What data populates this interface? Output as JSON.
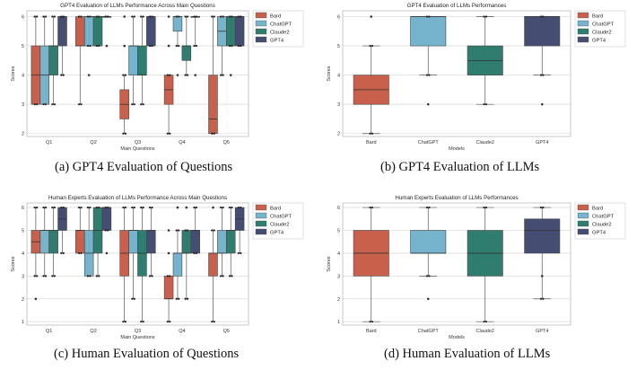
{
  "colors": {
    "Bard": "#c8604b",
    "ChatGPT": "#76b4cd",
    "Claude2": "#2f7d6e",
    "GPT4": "#454d72"
  },
  "chart_data": [
    {
      "id": "a",
      "type": "boxplot",
      "title": "GPT4 Evaluation of LLMs Performance Across Main Questions",
      "xlabel": "Main Questions",
      "ylabel": "Scores",
      "ylim": [
        1.9,
        6.2
      ],
      "yticks": [
        2,
        3,
        4,
        5,
        6
      ],
      "legend": "top-right",
      "grid": "y",
      "legend_entries": [
        "Bard",
        "ChatGPT",
        "Claude2",
        "GPT4"
      ],
      "categories": [
        "Q1",
        "Q2",
        "Q3",
        "Q4",
        "Q5"
      ],
      "series": [
        {
          "name": "Bard",
          "boxes": [
            {
              "min": 3,
              "q1": 3,
              "median": 4,
              "q3": 5,
              "max": 6,
              "outliers": []
            },
            {
              "min": 3,
              "q1": 5,
              "median": 5,
              "q3": 6,
              "max": 6,
              "outliers": []
            },
            {
              "min": 2,
              "q1": 2.5,
              "median": 3,
              "q3": 3.5,
              "max": 4,
              "outliers": [
                5,
                6
              ]
            },
            {
              "min": 2,
              "q1": 3,
              "median": 3.5,
              "q3": 4,
              "max": 4,
              "outliers": [
                5,
                6
              ]
            },
            {
              "min": 2,
              "q1": 2,
              "median": 2.5,
              "q3": 4,
              "max": 6,
              "outliers": []
            }
          ]
        },
        {
          "name": "ChatGPT",
          "boxes": [
            {
              "min": 3,
              "q1": 3,
              "median": 4,
              "q3": 5,
              "max": 6,
              "outliers": []
            },
            {
              "min": 5,
              "q1": 5,
              "median": 6,
              "q3": 6,
              "max": 6,
              "outliers": [
                4
              ]
            },
            {
              "min": 3,
              "q1": 4,
              "median": 5,
              "q3": 5,
              "max": 6,
              "outliers": []
            },
            {
              "min": 5,
              "q1": 5.5,
              "median": 6,
              "q3": 6,
              "max": 6,
              "outliers": [
                4
              ]
            },
            {
              "min": 4,
              "q1": 5,
              "median": 5.5,
              "q3": 6,
              "max": 6,
              "outliers": []
            }
          ]
        },
        {
          "name": "Claude2",
          "boxes": [
            {
              "min": 3,
              "q1": 4,
              "median": 5,
              "q3": 5,
              "max": 6,
              "outliers": []
            },
            {
              "min": 5,
              "q1": 5,
              "median": 6,
              "q3": 6,
              "max": 6,
              "outliers": []
            },
            {
              "min": 3,
              "q1": 4,
              "median": 4,
              "q3": 5,
              "max": 6,
              "outliers": []
            },
            {
              "min": 4,
              "q1": 4.5,
              "median": 5,
              "q3": 5,
              "max": 6,
              "outliers": []
            },
            {
              "min": 5,
              "q1": 5,
              "median": 6,
              "q3": 6,
              "max": 6,
              "outliers": [
                4
              ]
            }
          ]
        },
        {
          "name": "GPT4",
          "boxes": [
            {
              "min": 4,
              "q1": 5,
              "median": 6,
              "q3": 6,
              "max": 6,
              "outliers": []
            },
            {
              "min": 6,
              "q1": 6,
              "median": 6,
              "q3": 6,
              "max": 6,
              "outliers": [
                5
              ]
            },
            {
              "min": 5,
              "q1": 5,
              "median": 6,
              "q3": 6,
              "max": 6,
              "outliers": []
            },
            {
              "min": 5,
              "q1": 6,
              "median": 6,
              "q3": 6,
              "max": 6,
              "outliers": [
                4
              ]
            },
            {
              "min": 5,
              "q1": 5,
              "median": 6,
              "q3": 6,
              "max": 6,
              "outliers": []
            }
          ]
        }
      ]
    },
    {
      "id": "b",
      "type": "boxplot",
      "title": "GPT4 Evaluation of LLMs Performances",
      "xlabel": "Models",
      "ylabel": "Scores",
      "ylim": [
        1.9,
        6.2
      ],
      "yticks": [
        2,
        3,
        4,
        5,
        6
      ],
      "legend": "top-right",
      "grid": "y",
      "legend_entries": [
        "Bard",
        "ChatGPT",
        "Claude2",
        "GPT4"
      ],
      "categories": [
        "Bard",
        "ChatGPT",
        "Claude2",
        "GPT4"
      ],
      "series": [
        {
          "name": "Bard",
          "boxes": [
            {
              "min": 2,
              "q1": 3,
              "median": 3.5,
              "q3": 4,
              "max": 5,
              "outliers": [
                6
              ]
            }
          ]
        },
        {
          "name": "ChatGPT",
          "boxes": [
            {
              "min": 4,
              "q1": 5,
              "median": 6,
              "q3": 6,
              "max": 6,
              "outliers": [
                3
              ]
            }
          ]
        },
        {
          "name": "Claude2",
          "boxes": [
            {
              "min": 3,
              "q1": 4,
              "median": 4.5,
              "q3": 5,
              "max": 6,
              "outliers": []
            }
          ]
        },
        {
          "name": "GPT4",
          "boxes": [
            {
              "min": 4,
              "q1": 5,
              "median": 6,
              "q3": 6,
              "max": 6,
              "outliers": [
                3
              ]
            }
          ]
        }
      ]
    },
    {
      "id": "c",
      "type": "boxplot",
      "title": "Human Experts Evaluation of LLMs Performance Across Main Questions",
      "xlabel": "Main Questions",
      "ylabel": "Scores",
      "ylim": [
        0.85,
        6.2
      ],
      "yticks": [
        1,
        2,
        3,
        4,
        5,
        6
      ],
      "legend": "top-right",
      "grid": "y",
      "legend_entries": [
        "Bard",
        "ChatGPT",
        "Claude2",
        "GPT4"
      ],
      "categories": [
        "Q1",
        "Q2",
        "Q3",
        "Q4",
        "Q5"
      ],
      "series": [
        {
          "name": "Bard",
          "boxes": [
            {
              "min": 3,
              "q1": 4,
              "median": 4.5,
              "q3": 5,
              "max": 6,
              "outliers": [
                2
              ]
            },
            {
              "min": 4,
              "q1": 4,
              "median": 5,
              "q3": 5,
              "max": 6,
              "outliers": []
            },
            {
              "min": 1,
              "q1": 3,
              "median": 4,
              "q3": 5,
              "max": 6,
              "outliers": []
            },
            {
              "min": 1,
              "q1": 2,
              "median": 2,
              "q3": 3,
              "max": 3,
              "outliers": [
                4,
                5
              ]
            },
            {
              "min": 1,
              "q1": 3,
              "median": 4,
              "q3": 4,
              "max": 5,
              "outliers": [
                6
              ]
            }
          ]
        },
        {
          "name": "ChatGPT",
          "boxes": [
            {
              "min": 3,
              "q1": 4,
              "median": 5,
              "q3": 5,
              "max": 6,
              "outliers": []
            },
            {
              "min": 3,
              "q1": 3,
              "median": 4,
              "q3": 5,
              "max": 6,
              "outliers": []
            },
            {
              "min": 2,
              "q1": 4,
              "median": 5,
              "q3": 5,
              "max": 6,
              "outliers": []
            },
            {
              "min": 2,
              "q1": 3,
              "median": 4,
              "q3": 4,
              "max": 5,
              "outliers": [
                6
              ]
            },
            {
              "min": 3,
              "q1": 4,
              "median": 4,
              "q3": 5,
              "max": 6,
              "outliers": []
            }
          ]
        },
        {
          "name": "Claude2",
          "boxes": [
            {
              "min": 3,
              "q1": 4,
              "median": 5,
              "q3": 5,
              "max": 6,
              "outliers": []
            },
            {
              "min": 3,
              "q1": 4,
              "median": 5,
              "q3": 6,
              "max": 6,
              "outliers": []
            },
            {
              "min": 1,
              "q1": 3,
              "median": 4,
              "q3": 5,
              "max": 6,
              "outliers": []
            },
            {
              "min": 2,
              "q1": 4,
              "median": 4,
              "q3": 5,
              "max": 5,
              "outliers": [
                6
              ]
            },
            {
              "min": 3,
              "q1": 4,
              "median": 5,
              "q3": 5,
              "max": 6,
              "outliers": []
            }
          ]
        },
        {
          "name": "GPT4",
          "boxes": [
            {
              "min": 4,
              "q1": 5,
              "median": 5.5,
              "q3": 6,
              "max": 6,
              "outliers": []
            },
            {
              "min": 5,
              "q1": 5,
              "median": 6,
              "q3": 6,
              "max": 6,
              "outliers": [
                4
              ]
            },
            {
              "min": 3,
              "q1": 4,
              "median": 5,
              "q3": 5,
              "max": 6,
              "outliers": []
            },
            {
              "min": 4,
              "q1": 4,
              "median": 5,
              "q3": 5,
              "max": 6,
              "outliers": []
            },
            {
              "min": 4,
              "q1": 5,
              "median": 5.5,
              "q3": 6,
              "max": 6,
              "outliers": []
            }
          ]
        }
      ]
    },
    {
      "id": "d",
      "type": "boxplot",
      "title": "Human Experts Evaluation of LLMs Performances",
      "xlabel": "Models",
      "ylabel": "Scores",
      "ylim": [
        0.85,
        6.2
      ],
      "yticks": [
        1,
        2,
        3,
        4,
        5,
        6
      ],
      "legend": "top-right",
      "grid": "y",
      "legend_entries": [
        "Bard",
        "ChatGPT",
        "Claude2",
        "GPT4"
      ],
      "categories": [
        "Bard",
        "ChatGPT",
        "Claude2",
        "GPT4"
      ],
      "series": [
        {
          "name": "Bard",
          "boxes": [
            {
              "min": 1,
              "q1": 3,
              "median": 4,
              "q3": 5,
              "max": 6,
              "outliers": []
            }
          ]
        },
        {
          "name": "ChatGPT",
          "boxes": [
            {
              "min": 3,
              "q1": 4,
              "median": 4,
              "q3": 5,
              "max": 6,
              "outliers": [
                2
              ]
            }
          ]
        },
        {
          "name": "Claude2",
          "boxes": [
            {
              "min": 1,
              "q1": 3,
              "median": 4,
              "q3": 5,
              "max": 6,
              "outliers": []
            }
          ]
        },
        {
          "name": "GPT4",
          "boxes": [
            {
              "min": 2,
              "q1": 4,
              "median": 5,
              "q3": 5.5,
              "max": 6,
              "outliers": [
                3
              ]
            }
          ]
        }
      ]
    }
  ],
  "captions": {
    "a": "(a) GPT4 Evaluation of Questions",
    "b": "(b) GPT4 Evaluation of LLMs",
    "c": "(c) Human Evaluation of Questions",
    "d": "(d) Human Evaluation of LLMs"
  }
}
